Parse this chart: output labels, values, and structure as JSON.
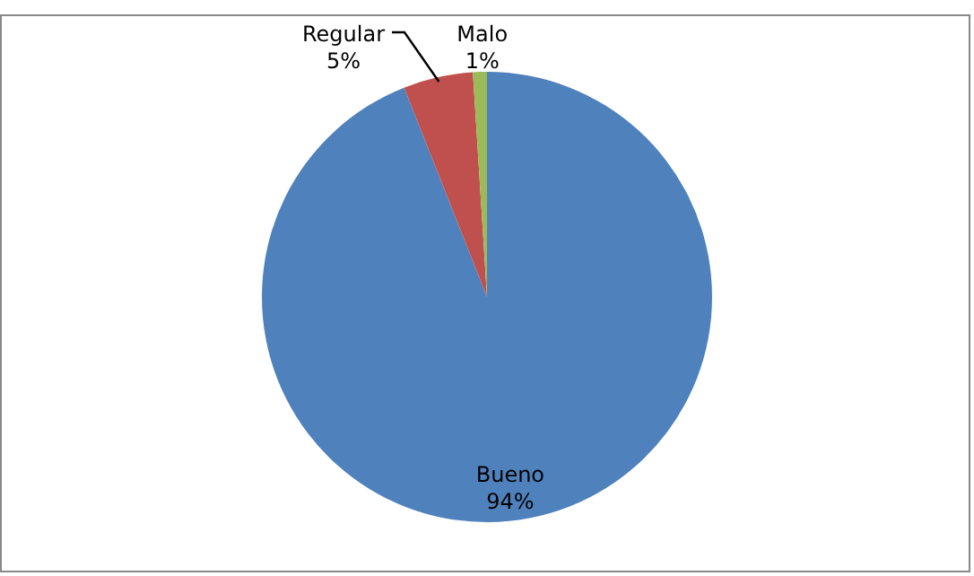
{
  "chart_data": {
    "type": "pie",
    "categories": [
      "Bueno",
      "Regular",
      "Malo"
    ],
    "values": [
      94,
      5,
      1
    ],
    "colors": [
      "#4f81bd",
      "#c0504d",
      "#9bbb59"
    ],
    "value_labels": [
      "94%",
      "5%",
      "1%"
    ],
    "legend": false
  }
}
